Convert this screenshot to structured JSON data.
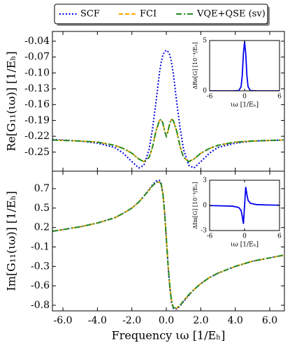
{
  "chart_data": [
    {
      "type": "line",
      "ylabel": "Re[G₁₁(ιω)] [1/Eₕ]",
      "legend": "top",
      "xlim": [
        -6.61,
        6.85
      ],
      "ylim": [
        -0.286,
        -0.0215
      ],
      "yticks": [
        -0.04,
        -0.07,
        {
          "value": -0.1,
          "label": "-0.10"
        },
        -0.13,
        -0.16,
        -0.19,
        -0.22,
        -0.25
      ],
      "x": [
        -6.6,
        -5,
        -4,
        -3,
        -2.5,
        -2,
        -1.6,
        -1.3,
        -1,
        -0.8,
        -0.6,
        -0.4,
        -0.3,
        -0.2,
        -0.1,
        0,
        0.1,
        0.2,
        0.3,
        0.4,
        0.6,
        0.8,
        1,
        1.3,
        1.6,
        2,
        2.5,
        3,
        4,
        5,
        6.8
      ],
      "series": [
        {
          "name": "SCF",
          "color": "#0000dd",
          "dash": "dotted",
          "values": [
            -0.226,
            -0.229,
            -0.233,
            -0.241,
            -0.252,
            -0.268,
            -0.28,
            -0.275,
            -0.245,
            -0.205,
            -0.155,
            -0.1,
            -0.08,
            -0.066,
            -0.06,
            -0.057,
            -0.06,
            -0.066,
            -0.08,
            -0.1,
            -0.155,
            -0.205,
            -0.245,
            -0.275,
            -0.28,
            -0.268,
            -0.252,
            -0.241,
            -0.233,
            -0.229,
            -0.227
          ]
        },
        {
          "name": "FCI",
          "color": "#ffa500",
          "dash": "dashed",
          "values": [
            -0.227,
            -0.229,
            -0.231,
            -0.237,
            -0.243,
            -0.252,
            -0.263,
            -0.268,
            -0.26,
            -0.24,
            -0.21,
            -0.19,
            -0.188,
            -0.195,
            -0.21,
            -0.22,
            -0.21,
            -0.195,
            -0.188,
            -0.19,
            -0.21,
            -0.24,
            -0.26,
            -0.268,
            -0.263,
            -0.252,
            -0.243,
            -0.237,
            -0.231,
            -0.229,
            -0.227
          ]
        },
        {
          "name": "VQE+QSE (sv)",
          "color": "#228b22",
          "dash": "dashdot",
          "values": [
            -0.227,
            -0.229,
            -0.231,
            -0.237,
            -0.243,
            -0.252,
            -0.263,
            -0.268,
            -0.26,
            -0.24,
            -0.21,
            -0.19,
            -0.188,
            -0.195,
            -0.21,
            -0.22,
            -0.21,
            -0.195,
            -0.188,
            -0.19,
            -0.21,
            -0.24,
            -0.26,
            -0.268,
            -0.263,
            -0.252,
            -0.243,
            -0.237,
            -0.231,
            -0.229,
            -0.227
          ]
        }
      ]
    },
    {
      "type": "line",
      "ylabel": "Im[G₁₁(ιω)] [1/Eₕ]",
      "xlabel": "Frequency ιω [1/Eₕ]",
      "xlim": [
        -6.61,
        6.85
      ],
      "ylim": [
        -0.915,
        0.954
      ],
      "xticks": [
        {
          "value": -6,
          "label": "-6.0"
        },
        {
          "value": -4,
          "label": "-4.0"
        },
        {
          "value": -2,
          "label": "-2.0"
        },
        {
          "value": 0,
          "label": "0.0"
        },
        {
          "value": 2,
          "label": "2.0"
        },
        {
          "value": 4,
          "label": "4.0"
        },
        {
          "value": 6,
          "label": "6.0"
        }
      ],
      "yticks": [
        {
          "value": 0.72,
          "label": "0.7"
        },
        {
          "value": 0.46,
          "label": "0.5"
        },
        {
          "value": 0.2,
          "label": "0.2"
        },
        {
          "value": -0.06,
          "label": "-0.1"
        },
        {
          "value": -0.32,
          "label": "-0.3"
        },
        {
          "value": -0.58,
          "label": "-0.6"
        },
        {
          "value": -0.84,
          "label": "-0.8"
        }
      ],
      "x": [
        -6.6,
        -5,
        -4,
        -3,
        -2.5,
        -2,
        -1.6,
        -1.3,
        -1,
        -0.8,
        -0.6,
        -0.4,
        -0.3,
        -0.2,
        -0.1,
        0,
        0.1,
        0.2,
        0.3,
        0.4,
        0.6,
        0.8,
        1,
        1.3,
        1.6,
        2,
        2.5,
        3,
        4,
        5,
        6.8
      ],
      "series": [
        {
          "color": "#0000dd",
          "dash": "dotted",
          "values": [
            0.15,
            0.21,
            0.26,
            0.33,
            0.39,
            0.46,
            0.54,
            0.62,
            0.71,
            0.77,
            0.82,
            0.83,
            0.79,
            0.66,
            0.41,
            0.05,
            -0.31,
            -0.6,
            -0.8,
            -0.88,
            -0.89,
            -0.85,
            -0.79,
            -0.71,
            -0.63,
            -0.55,
            -0.47,
            -0.41,
            -0.32,
            -0.25,
            -0.17
          ]
        },
        {
          "color": "#ffa500",
          "dash": "dashed",
          "values": [
            0.15,
            0.21,
            0.26,
            0.33,
            0.39,
            0.46,
            0.54,
            0.62,
            0.7,
            0.76,
            0.8,
            0.81,
            0.78,
            0.65,
            0.4,
            0.05,
            -0.3,
            -0.58,
            -0.78,
            -0.87,
            -0.88,
            -0.84,
            -0.78,
            -0.7,
            -0.63,
            -0.55,
            -0.47,
            -0.41,
            -0.32,
            -0.25,
            -0.17
          ]
        },
        {
          "color": "#228b22",
          "dash": "dashdot",
          "values": [
            0.15,
            0.21,
            0.26,
            0.33,
            0.39,
            0.46,
            0.54,
            0.62,
            0.7,
            0.76,
            0.8,
            0.81,
            0.78,
            0.65,
            0.4,
            0.05,
            -0.3,
            -0.58,
            -0.78,
            -0.87,
            -0.88,
            -0.84,
            -0.78,
            -0.7,
            -0.63,
            -0.55,
            -0.47,
            -0.41,
            -0.32,
            -0.25,
            -0.17
          ]
        }
      ]
    },
    {
      "type": "line",
      "ylabel": "ΔRe[G] [10⁻⁴/Eₕ]",
      "xlabel": "ιω [1/Eₕ]",
      "xlim": [
        -6,
        6
      ],
      "ylim": [
        0,
        5
      ],
      "xticks": [
        -6,
        0,
        6
      ],
      "yticks": [
        0,
        5
      ],
      "x": [
        -6,
        -4,
        -2,
        -1,
        -0.6,
        -0.4,
        -0.2,
        0,
        0.2,
        0.4,
        0.6,
        1,
        2,
        4,
        6
      ],
      "series": [
        {
          "color": "#0000ee",
          "values": [
            0,
            0,
            0,
            0.02,
            0.4,
            1.5,
            3.7,
            4.9,
            3.7,
            1.5,
            0.4,
            0.02,
            0,
            0,
            0
          ]
        }
      ]
    },
    {
      "type": "line",
      "ylabel": "ΔIm[G] [10⁻⁴/Eₕ]",
      "xlabel": "ιω [1/Eₕ]",
      "xlim": [
        -6,
        6
      ],
      "ylim": [
        -3,
        3
      ],
      "xticks": [
        -6,
        0,
        6
      ],
      "yticks": [
        -3,
        0,
        3
      ],
      "x": [
        -6,
        -4,
        -2,
        -1,
        -0.6,
        -0.4,
        -0.2,
        0,
        0.2,
        0.4,
        0.6,
        1,
        2,
        4,
        6
      ],
      "series": [
        {
          "color": "#0000ee",
          "values": [
            -0.02,
            -0.05,
            -0.1,
            -0.25,
            -0.6,
            -1.3,
            -2.2,
            0,
            2.2,
            1.3,
            0.6,
            0.25,
            0.1,
            0.05,
            0.02
          ]
        }
      ]
    }
  ]
}
